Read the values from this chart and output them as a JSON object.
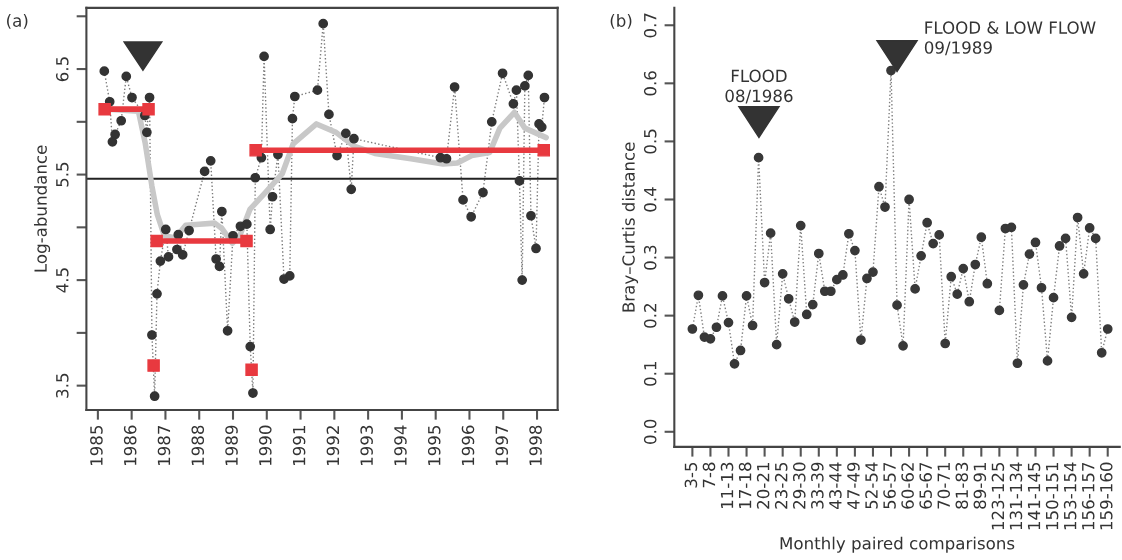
{
  "chart_data": [
    {
      "type": "line",
      "ylabel": "Log-abundance",
      "annotations": [
        "(a)"
      ],
      "xlim": [
        1984.66,
        1998.61
      ],
      "ylim": [
        3.27,
        7.08
      ],
      "xticks": [
        1985,
        1986,
        1987,
        1988,
        1989,
        1990,
        1991,
        1992,
        1993,
        1994,
        1995,
        1996,
        1997,
        1998
      ],
      "yticks": [
        3.5,
        {
          "value": 4.0,
          "label": null
        },
        4.5,
        {
          "value": 5.0,
          "label": null
        },
        5.5,
        {
          "value": 6.0,
          "label": null
        },
        6.5,
        {
          "value": 7.0,
          "label": null
        }
      ],
      "grid": false,
      "legend": false,
      "ref_lines": [
        {
          "axis": "y",
          "value": 5.46,
          "color": "#222222",
          "line_style": "solid"
        }
      ],
      "series": [
        {
          "color": "#333333",
          "marker": "circle",
          "line_style": "dotted",
          "x": [
            1985.19,
            1985.35,
            1985.43,
            1985.51,
            1985.69,
            1985.84,
            1986.01,
            1986.39,
            1986.45,
            1986.53,
            1986.6,
            1986.68,
            1986.75,
            1986.85,
            1987.01,
            1987.09,
            1987.34,
            1987.38,
            1987.51,
            1987.7,
            1988.16,
            1988.34,
            1988.5,
            1988.6,
            1988.67,
            1988.84,
            1989.0,
            1989.22,
            1989.41,
            1989.51,
            1989.59,
            1989.66,
            1989.84,
            1989.92,
            1990.1,
            1990.17,
            1990.33,
            1990.51,
            1990.68,
            1990.76,
            1990.83,
            1991.5,
            1991.67,
            1991.84,
            1992.08,
            1992.34,
            1992.5,
            1992.58,
            1995.14,
            1995.32,
            1995.56,
            1995.81,
            1996.05,
            1996.4,
            1996.66,
            1996.98,
            1997.3,
            1997.39,
            1997.48,
            1997.56,
            1997.64,
            1997.74,
            1997.82,
            1997.97,
            1998.06,
            1998.14,
            1998.22
          ],
          "values": [
            6.48,
            6.19,
            5.81,
            5.88,
            6.01,
            6.43,
            6.23,
            6.06,
            5.9,
            6.23,
            3.98,
            3.4,
            4.37,
            4.68,
            4.98,
            4.72,
            4.79,
            4.93,
            4.74,
            4.97,
            5.53,
            5.63,
            4.7,
            4.63,
            5.15,
            4.02,
            4.92,
            5.01,
            5.03,
            3.87,
            3.43,
            5.47,
            5.66,
            6.62,
            4.98,
            5.29,
            5.69,
            4.51,
            4.54,
            6.03,
            6.24,
            6.3,
            6.93,
            6.07,
            5.68,
            5.89,
            5.36,
            5.84,
            5.66,
            5.65,
            6.33,
            5.26,
            5.1,
            5.33,
            6.0,
            6.46,
            6.17,
            6.3,
            5.44,
            4.5,
            6.34,
            6.44,
            5.11,
            4.8,
            5.98,
            5.95,
            6.23
          ]
        },
        {
          "color": "#c8c8c8",
          "marker": "none",
          "line_style": "solid",
          "x": [
            1985.3,
            1986.2,
            1986.4,
            1986.6,
            1986.76,
            1986.97,
            1987.3,
            1987.6,
            1988.0,
            1988.46,
            1988.67,
            1988.98,
            1989.2,
            1989.5,
            1989.93,
            1990.46,
            1990.78,
            1991.47,
            1992.05,
            1992.58,
            1993.2,
            1994.27,
            1995.22,
            1995.64,
            1996.07,
            1996.6,
            1996.9,
            1997.33,
            1997.64,
            1998.27
          ],
          "values": [
            6.12,
            6.1,
            5.8,
            5.39,
            5.12,
            4.92,
            4.9,
            5.02,
            5.03,
            5.04,
            4.99,
            4.85,
            4.92,
            5.17,
            5.32,
            5.51,
            5.79,
            5.98,
            5.9,
            5.77,
            5.7,
            5.65,
            5.6,
            5.61,
            5.68,
            5.71,
            5.94,
            6.09,
            5.94,
            5.85
          ]
        },
        {
          "color": "#e8393f",
          "marker": "square",
          "line_style": "solid",
          "x": [
            1985.2,
            1986.5,
            1986.58,
            1986.65,
            1986.7,
            1986.74,
            1989.4,
            1989.47,
            1989.55,
            1989.6,
            1989.67,
            1998.2
          ],
          "values": [
            6.12,
            6.12,
            null,
            3.69,
            null,
            4.87,
            4.87,
            null,
            3.65,
            null,
            5.73,
            5.73
          ]
        }
      ]
    },
    {
      "type": "line",
      "xlabel": "Monthly paired comparisons",
      "ylabel": "Bray–Curtis distance",
      "annotations": [
        "(b)",
        "FLOOD\n08/1986",
        "FLOOD & LOW FLOW\n09/1989"
      ],
      "ylim": [
        -0.026,
        0.73
      ],
      "yticks": [
        {
          "value": 0.0,
          "label": "0.0"
        },
        0.1,
        0.2,
        0.3,
        0.4,
        0.5,
        0.6,
        0.7
      ],
      "grid": false,
      "legend": false,
      "categories": [
        "3-5",
        null,
        null,
        "7-8",
        null,
        null,
        "11-13",
        null,
        null,
        "17-18",
        null,
        null,
        "20-21",
        null,
        null,
        "23-25",
        null,
        null,
        "29-30",
        null,
        null,
        "33-39",
        null,
        null,
        "43-44",
        null,
        null,
        "47-49",
        null,
        null,
        "52-54",
        null,
        null,
        "56-57",
        null,
        null,
        "60-62",
        null,
        null,
        "65-67",
        null,
        null,
        "70-71",
        null,
        null,
        "81-83",
        null,
        null,
        "89-91",
        null,
        null,
        "123-125",
        null,
        null,
        "131-134",
        null,
        null,
        "141-145",
        null,
        null,
        "150-151",
        null,
        null,
        "153-154",
        null,
        null,
        "156-157",
        null,
        null,
        "159-160"
      ],
      "series": [
        {
          "color": "#383838",
          "marker": "circle",
          "line_style": "dotted",
          "values": [
            0.177,
            0.235,
            0.163,
            0.16,
            0.18,
            0.234,
            0.188,
            0.117,
            0.14,
            0.234,
            0.183,
            0.472,
            0.257,
            0.342,
            0.15,
            0.272,
            0.229,
            0.189,
            0.355,
            0.202,
            0.219,
            0.307,
            0.242,
            0.242,
            0.262,
            0.27,
            0.341,
            0.312,
            0.158,
            0.264,
            0.275,
            0.422,
            0.387,
            0.622,
            0.218,
            0.148,
            0.4,
            0.246,
            0.303,
            0.36,
            0.324,
            0.339,
            0.152,
            0.267,
            0.237,
            0.281,
            0.224,
            0.288,
            0.335,
            0.255,
            null,
            0.209,
            0.35,
            0.352,
            0.118,
            0.253,
            0.306,
            0.326,
            0.248,
            0.122,
            0.231,
            0.32,
            0.333,
            0.197,
            0.369,
            0.272,
            0.351,
            0.333,
            0.136,
            0.177
          ]
        }
      ]
    }
  ]
}
